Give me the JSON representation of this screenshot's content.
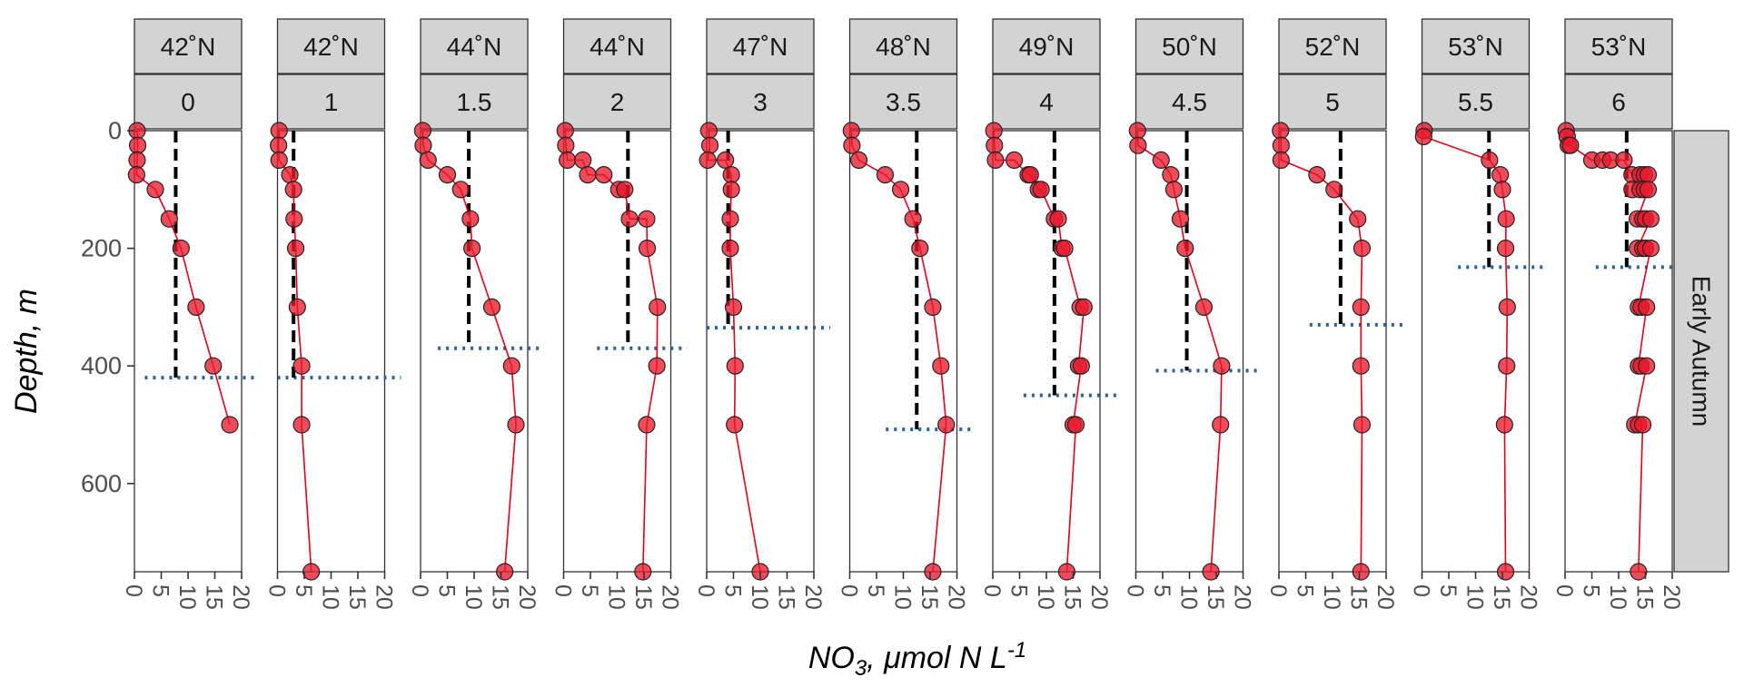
{
  "chart_data": {
    "type": "line",
    "facet_row_label": "Early Autumn",
    "xlabel_main": "NO",
    "xlabel_sub": "3",
    "xlabel_rest": ", μmol N L",
    "xlabel_sup": "-1",
    "ylabel": "Depth, m",
    "xlim": [
      0,
      20
    ],
    "ylim": [
      0,
      750
    ],
    "y_reversed": true,
    "x_ticks": [
      "0",
      "5",
      "10",
      "15",
      "20"
    ],
    "y_ticks": [
      "0",
      "200",
      "400",
      "600"
    ],
    "colors": {
      "points": "#e8192c",
      "line": "#e0001b",
      "mld": "#000000",
      "nitracline": "#2b5f9e",
      "strip": "#d3d3d3"
    },
    "panels": [
      {
        "lat": "42˚N",
        "step": "0",
        "mld_depth": 420,
        "dashed_x": 7.7,
        "points": [
          [
            0.5,
            0
          ],
          [
            0.6,
            25
          ],
          [
            0.5,
            50
          ],
          [
            0.4,
            75
          ],
          [
            3.9,
            100
          ],
          [
            6.5,
            150
          ],
          [
            8.7,
            200
          ],
          [
            11.5,
            300
          ],
          [
            14.7,
            400
          ],
          [
            17.8,
            500
          ]
        ]
      },
      {
        "lat": "42˚N",
        "step": "1",
        "mld_depth": 420,
        "dashed_x": 3.0,
        "points": [
          [
            0.3,
            0
          ],
          [
            0.2,
            25
          ],
          [
            0.3,
            50
          ],
          [
            2.3,
            75
          ],
          [
            3.0,
            100
          ],
          [
            3.1,
            150
          ],
          [
            3.4,
            200
          ],
          [
            3.7,
            300
          ],
          [
            4.5,
            400
          ],
          [
            4.5,
            500
          ],
          [
            6.3,
            750
          ]
        ]
      },
      {
        "lat": "44˚N",
        "step": "1.5",
        "mld_depth": 370,
        "dashed_x": 9.0,
        "points": [
          [
            0.4,
            0
          ],
          [
            0.5,
            25
          ],
          [
            1.4,
            50
          ],
          [
            5.0,
            75
          ],
          [
            7.5,
            100
          ],
          [
            9.3,
            150
          ],
          [
            9.6,
            200
          ],
          [
            13.3,
            300
          ],
          [
            17.0,
            400
          ],
          [
            17.8,
            500
          ],
          [
            15.7,
            750
          ]
        ]
      },
      {
        "lat": "44˚N",
        "step": "2",
        "mld_depth": 370,
        "dashed_x": 12.0,
        "points": [
          [
            0.3,
            0
          ],
          [
            0.4,
            25
          ],
          [
            0.7,
            50
          ],
          [
            3.6,
            50
          ],
          [
            4.5,
            75
          ],
          [
            7.5,
            75
          ],
          [
            10.3,
            100
          ],
          [
            11.4,
            100
          ],
          [
            12.3,
            150
          ],
          [
            15.5,
            150
          ],
          [
            15.6,
            200
          ],
          [
            17.5,
            300
          ],
          [
            17.4,
            400
          ],
          [
            15.5,
            500
          ],
          [
            14.8,
            750
          ]
        ]
      },
      {
        "lat": "47˚N",
        "step": "3",
        "mld_depth": 335,
        "dashed_x": 4.0,
        "points": [
          [
            0.4,
            0
          ],
          [
            0.6,
            25
          ],
          [
            0.2,
            50
          ],
          [
            3.5,
            50
          ],
          [
            4.6,
            75
          ],
          [
            4.6,
            100
          ],
          [
            4.4,
            150
          ],
          [
            4.4,
            200
          ],
          [
            5.0,
            300
          ],
          [
            5.3,
            400
          ],
          [
            5.2,
            500
          ],
          [
            10.0,
            750
          ]
        ]
      },
      {
        "lat": "48˚N",
        "step": "3.5",
        "mld_depth": 508,
        "dashed_x": 12.5,
        "points": [
          [
            0.3,
            0
          ],
          [
            0.4,
            25
          ],
          [
            1.7,
            50
          ],
          [
            6.6,
            75
          ],
          [
            9.5,
            100
          ],
          [
            11.8,
            150
          ],
          [
            13.1,
            200
          ],
          [
            15.5,
            300
          ],
          [
            17.0,
            400
          ],
          [
            18.0,
            500
          ],
          [
            15.5,
            750
          ]
        ]
      },
      {
        "lat": "49˚N",
        "step": "4",
        "mld_depth": 450,
        "dashed_x": 11.5,
        "points": [
          [
            0.2,
            0
          ],
          [
            0.3,
            25
          ],
          [
            0.5,
            50
          ],
          [
            4.0,
            50
          ],
          [
            6.6,
            75
          ],
          [
            7.0,
            75
          ],
          [
            8.5,
            100
          ],
          [
            9.0,
            100
          ],
          [
            11.5,
            150
          ],
          [
            12.2,
            150
          ],
          [
            12.9,
            200
          ],
          [
            13.4,
            200
          ],
          [
            16.3,
            300
          ],
          [
            17.0,
            300
          ],
          [
            16.0,
            400
          ],
          [
            16.5,
            400
          ],
          [
            15.0,
            500
          ],
          [
            15.5,
            500
          ],
          [
            13.8,
            750
          ]
        ]
      },
      {
        "lat": "50˚N",
        "step": "4.5",
        "mld_depth": 408,
        "dashed_x": 9.5,
        "points": [
          [
            0.3,
            0
          ],
          [
            0.4,
            25
          ],
          [
            4.7,
            50
          ],
          [
            6.5,
            75
          ],
          [
            7.1,
            100
          ],
          [
            8.3,
            150
          ],
          [
            9.2,
            200
          ],
          [
            12.7,
            300
          ],
          [
            16.0,
            400
          ],
          [
            15.8,
            500
          ],
          [
            14.0,
            750
          ]
        ]
      },
      {
        "lat": "52˚N",
        "step": "5",
        "mld_depth": 330,
        "dashed_x": 11.5,
        "points": [
          [
            0.3,
            0
          ],
          [
            0.4,
            25
          ],
          [
            0.4,
            50
          ],
          [
            7.1,
            75
          ],
          [
            10.3,
            100
          ],
          [
            14.7,
            150
          ],
          [
            15.5,
            200
          ],
          [
            15.3,
            300
          ],
          [
            15.3,
            400
          ],
          [
            15.5,
            500
          ],
          [
            15.3,
            750
          ]
        ]
      },
      {
        "lat": "53˚N",
        "step": "5.5",
        "mld_depth": 232,
        "dashed_x": 12.5,
        "points": [
          [
            0.4,
            0
          ],
          [
            0.3,
            10
          ],
          [
            12.6,
            50
          ],
          [
            14.6,
            75
          ],
          [
            15.0,
            100
          ],
          [
            15.7,
            150
          ],
          [
            15.6,
            200
          ],
          [
            15.9,
            300
          ],
          [
            15.8,
            400
          ],
          [
            15.4,
            500
          ],
          [
            15.6,
            750
          ]
        ]
      },
      {
        "lat": "53˚N",
        "step": "6",
        "mld_depth": 232,
        "dashed_x": 11.5,
        "points": [
          [
            0.2,
            0
          ],
          [
            0.4,
            10
          ],
          [
            0.6,
            25
          ],
          [
            1.0,
            25
          ],
          [
            5.0,
            50
          ],
          [
            7.0,
            50
          ],
          [
            8.5,
            50
          ],
          [
            11.0,
            50
          ],
          [
            12.5,
            75
          ],
          [
            14.0,
            75
          ],
          [
            14.8,
            75
          ],
          [
            15.5,
            75
          ],
          [
            12.5,
            100
          ],
          [
            14.0,
            100
          ],
          [
            14.8,
            100
          ],
          [
            15.5,
            100
          ],
          [
            13.5,
            150
          ],
          [
            14.5,
            150
          ],
          [
            15.0,
            150
          ],
          [
            16.0,
            150
          ],
          [
            13.5,
            200
          ],
          [
            14.5,
            200
          ],
          [
            15.0,
            200
          ],
          [
            16.0,
            200
          ],
          [
            13.7,
            300
          ],
          [
            14.2,
            300
          ],
          [
            15.2,
            300
          ],
          [
            13.7,
            400
          ],
          [
            14.2,
            400
          ],
          [
            15.2,
            400
          ],
          [
            13.0,
            500
          ],
          [
            13.7,
            500
          ],
          [
            14.5,
            500
          ],
          [
            13.7,
            750
          ]
        ]
      }
    ]
  }
}
